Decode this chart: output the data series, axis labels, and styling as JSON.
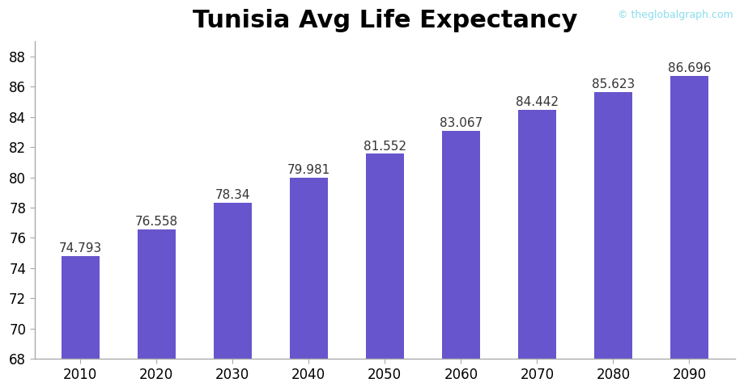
{
  "title": "Tunisia Avg Life Expectancy",
  "watermark": "© theglobalgraph.com",
  "categories": [
    "2010",
    "2020",
    "2030",
    "2040",
    "2050",
    "2060",
    "2070",
    "2080",
    "2090"
  ],
  "values": [
    74.793,
    76.558,
    78.34,
    79.981,
    81.552,
    83.067,
    84.442,
    85.623,
    86.696
  ],
  "bar_color": "#6655CC",
  "ylim": [
    68,
    89
  ],
  "yticks": [
    68,
    70,
    72,
    74,
    76,
    78,
    80,
    82,
    84,
    86,
    88
  ],
  "title_fontsize": 22,
  "label_fontsize": 11,
  "tick_fontsize": 12,
  "bar_width": 0.5,
  "background_color": "#ffffff",
  "value_label_color": "#333333",
  "watermark_color": "#88DDEE",
  "spine_color": "#aaaaaa"
}
